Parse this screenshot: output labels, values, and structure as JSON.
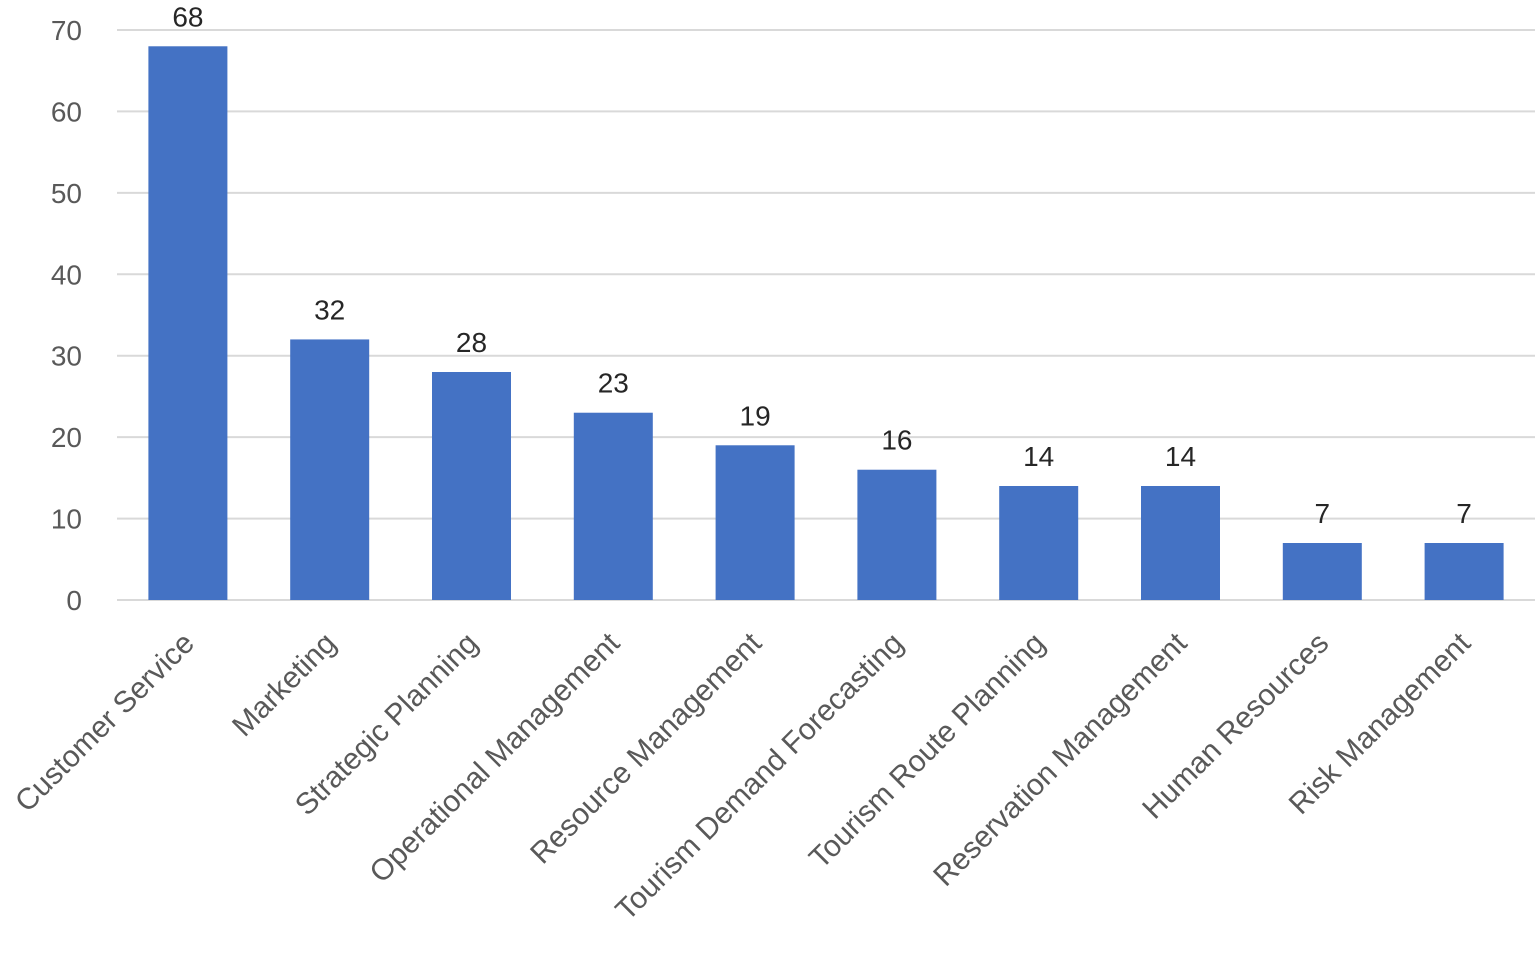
{
  "chart_data": {
    "type": "bar",
    "title": "",
    "xlabel": "",
    "ylabel": "",
    "categories": [
      "Customer Service",
      "Marketing",
      "Strategic Planning",
      "Operational Management",
      "Resource Management",
      "Tourism Demand Forecasting",
      "Tourism Route Planning",
      "Reservation Management",
      "Human Resources",
      "Risk Management"
    ],
    "values": [
      68,
      32,
      28,
      23,
      19,
      16,
      14,
      14,
      7,
      7
    ],
    "ylim": [
      0,
      70
    ],
    "yticks": [
      0,
      10,
      20,
      30,
      40,
      50,
      60,
      70
    ],
    "grid": true,
    "legend": "none",
    "data_labels": true,
    "colors": {
      "bar": "#4472C4",
      "grid": "#D9D9D9",
      "axis_text": "#595959",
      "label_text": "#262626"
    }
  }
}
